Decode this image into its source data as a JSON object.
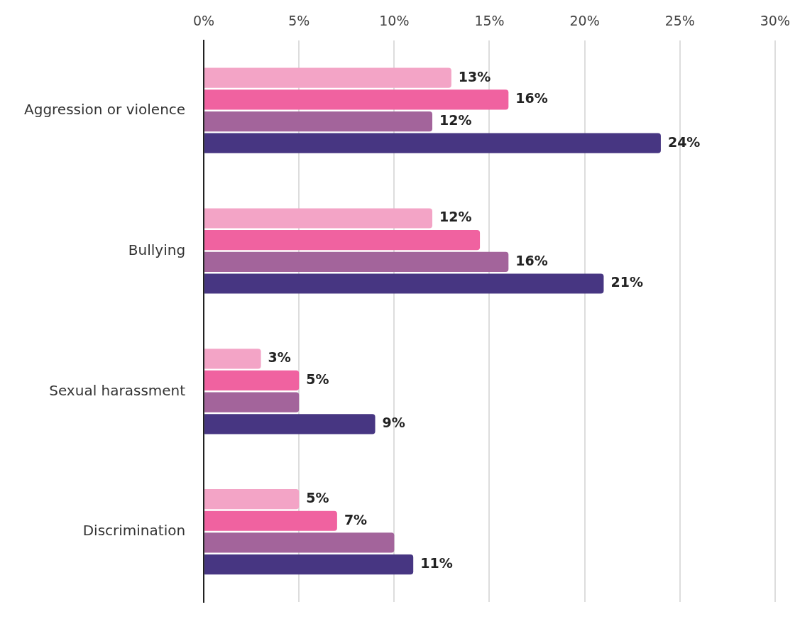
{
  "chart_data": {
    "type": "bar",
    "orientation": "horizontal",
    "categories": [
      "Aggression or violence",
      "Bullying",
      "Sexual harassment",
      "Discrimination"
    ],
    "series": [
      {
        "color": "#f3a4c6",
        "values": [
          13,
          12,
          3,
          5
        ],
        "value_labels": [
          "13%",
          "12%",
          "3%",
          "5%"
        ]
      },
      {
        "color": "#f062a0",
        "values": [
          16,
          14.5,
          5,
          7
        ],
        "value_labels": [
          "16%",
          null,
          "5%",
          "7%"
        ]
      },
      {
        "color": "#a3649b",
        "values": [
          12,
          16,
          5,
          10
        ],
        "value_labels": [
          "12%",
          "16%",
          null,
          null
        ]
      },
      {
        "color": "#473682",
        "values": [
          24,
          21,
          9,
          11
        ],
        "value_labels": [
          "24%",
          "21%",
          "9%",
          "11%"
        ]
      }
    ],
    "xlim": [
      0,
      30
    ],
    "xticks": [
      {
        "value": 0,
        "label": "0%"
      },
      {
        "value": 5,
        "label": "5%"
      },
      {
        "value": 10,
        "label": "10%"
      },
      {
        "value": 15,
        "label": "15%"
      },
      {
        "value": 20,
        "label": "20%"
      },
      {
        "value": 25,
        "label": "25%"
      },
      {
        "value": 30,
        "label": "30%"
      }
    ],
    "grid": "x",
    "legend": false
  }
}
